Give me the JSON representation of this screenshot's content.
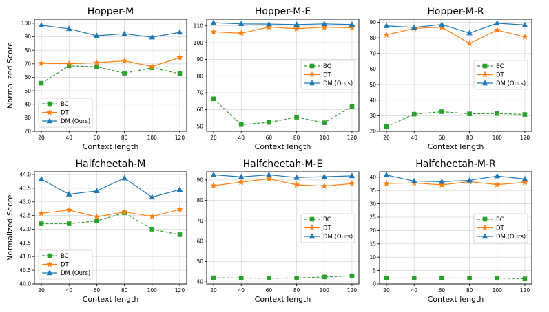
{
  "figure": {
    "row_ylabel": "Normalized Score",
    "xlabel": "Context length"
  },
  "legend": {
    "entries": [
      "BC",
      "DT",
      "DM (Ours)"
    ]
  },
  "colors": {
    "BC": "#2ca02c",
    "DT": "#ff7f0e",
    "DM": "#1f77b4",
    "grid": "#d9d9d9",
    "axis": "#000000"
  },
  "chart_data": [
    {
      "type": "line",
      "title": "Hopper-M",
      "xlabel": "Context length",
      "ylabel": "Normalized Score",
      "x": [
        20,
        40,
        60,
        80,
        100,
        120
      ],
      "xlim": [
        15,
        125
      ],
      "ylim": [
        20,
        103
      ],
      "yticks": [
        20,
        30,
        40,
        50,
        60,
        70,
        80,
        90,
        100
      ],
      "grid": true,
      "legend_position": "lower-left",
      "series": [
        {
          "name": "BC",
          "marker": "square",
          "linestyle": "dashed",
          "values": [
            55.6,
            68.5,
            67.8,
            63.0,
            67.0,
            62.6
          ]
        },
        {
          "name": "DT",
          "marker": "star",
          "linestyle": "solid",
          "values": [
            70.4,
            70.1,
            70.8,
            72.2,
            68.0,
            74.6
          ]
        },
        {
          "name": "DM (Ours)",
          "marker": "triangle",
          "linestyle": "solid",
          "values": [
            98.5,
            95.9,
            90.8,
            92.2,
            89.7,
            93.3
          ]
        }
      ]
    },
    {
      "type": "line",
      "title": "Hopper-M-E",
      "xlabel": "Context length",
      "ylabel": "",
      "x": [
        20,
        40,
        60,
        80,
        100,
        120
      ],
      "xlim": [
        15,
        125
      ],
      "ylim": [
        47,
        114
      ],
      "yticks": [
        50,
        60,
        70,
        80,
        90,
        100,
        110
      ],
      "grid": true,
      "legend_position": "center-right",
      "series": [
        {
          "name": "BC",
          "marker": "square",
          "linestyle": "dashed",
          "values": [
            66.4,
            51.0,
            52.3,
            55.4,
            52.1,
            61.8
          ]
        },
        {
          "name": "DT",
          "marker": "star",
          "linestyle": "solid",
          "values": [
            106.5,
            105.6,
            109.3,
            108.3,
            109.2,
            108.9
          ]
        },
        {
          "name": "DM (Ours)",
          "marker": "triangle",
          "linestyle": "solid",
          "values": [
            111.9,
            111.2,
            111.1,
            110.8,
            111.2,
            110.8
          ]
        }
      ]
    },
    {
      "type": "line",
      "title": "Hopper-M-R",
      "xlabel": "Context length",
      "ylabel": "",
      "x": [
        20,
        40,
        60,
        80,
        100,
        120
      ],
      "xlim": [
        15,
        125
      ],
      "ylim": [
        20,
        92
      ],
      "yticks": [
        20,
        30,
        40,
        50,
        60,
        70,
        80,
        90
      ],
      "grid": true,
      "legend_position": "center-right",
      "series": [
        {
          "name": "BC",
          "marker": "square",
          "linestyle": "dashed",
          "values": [
            23.0,
            31.0,
            32.6,
            31.2,
            31.4,
            30.8
          ]
        },
        {
          "name": "DT",
          "marker": "star",
          "linestyle": "solid",
          "values": [
            82.0,
            86.0,
            86.9,
            76.4,
            85.0,
            80.6
          ]
        },
        {
          "name": "DM (Ours)",
          "marker": "triangle",
          "linestyle": "solid",
          "values": [
            87.7,
            86.7,
            88.6,
            83.1,
            89.4,
            88.3
          ]
        }
      ]
    },
    {
      "type": "line",
      "title": "Halfcheetah-M",
      "xlabel": "Context length",
      "ylabel": "Normalized Score",
      "x": [
        20,
        40,
        60,
        80,
        100,
        120
      ],
      "xlim": [
        15,
        125
      ],
      "ylim": [
        40.0,
        44.1
      ],
      "yticks": [
        40.0,
        40.5,
        41.0,
        41.5,
        42.0,
        42.5,
        43.0,
        43.5,
        44.0
      ],
      "grid": true,
      "legend_position": "lower-left",
      "series": [
        {
          "name": "BC",
          "marker": "square",
          "linestyle": "dashed",
          "values": [
            42.2,
            42.2,
            42.3,
            42.6,
            42.0,
            41.8
          ]
        },
        {
          "name": "DT",
          "marker": "star",
          "linestyle": "solid",
          "values": [
            42.58,
            42.7,
            42.45,
            42.63,
            42.47,
            42.72
          ]
        },
        {
          "name": "DM (Ours)",
          "marker": "triangle",
          "linestyle": "solid",
          "values": [
            43.83,
            43.28,
            43.4,
            43.87,
            43.17,
            43.45
          ]
        }
      ]
    },
    {
      "type": "line",
      "title": "Halfcheetah-M-E",
      "xlabel": "Context length",
      "ylabel": "",
      "x": [
        20,
        40,
        60,
        80,
        100,
        120
      ],
      "xlim": [
        15,
        125
      ],
      "ylim": [
        39,
        94
      ],
      "yticks": [
        40,
        50,
        60,
        70,
        80,
        90
      ],
      "grid": true,
      "legend_position": "center-right",
      "series": [
        {
          "name": "BC",
          "marker": "square",
          "linestyle": "dashed",
          "values": [
            42.0,
            41.9,
            41.8,
            41.9,
            42.4,
            43.0
          ]
        },
        {
          "name": "DT",
          "marker": "star",
          "linestyle": "solid",
          "values": [
            87.2,
            88.9,
            90.6,
            87.6,
            87.0,
            88.2
          ]
        },
        {
          "name": "DM (Ours)",
          "marker": "triangle",
          "linestyle": "solid",
          "values": [
            92.5,
            91.5,
            92.5,
            91.2,
            91.6,
            92.0
          ]
        }
      ]
    },
    {
      "type": "line",
      "title": "Halfcheetah-M-R",
      "xlabel": "Context length",
      "ylabel": "",
      "x": [
        20,
        40,
        60,
        80,
        100,
        120
      ],
      "xlim": [
        15,
        125
      ],
      "ylim": [
        0,
        42
      ],
      "yticks": [
        0,
        5,
        10,
        15,
        20,
        25,
        30,
        35,
        40
      ],
      "grid": true,
      "legend_position": "center-right",
      "series": [
        {
          "name": "BC",
          "marker": "square",
          "linestyle": "dashed",
          "values": [
            2.2,
            2.2,
            2.2,
            2.2,
            2.2,
            1.9
          ]
        },
        {
          "name": "DT",
          "marker": "star",
          "linestyle": "solid",
          "values": [
            37.6,
            37.8,
            37.1,
            38.3,
            37.2,
            38.0
          ]
        },
        {
          "name": "DM (Ours)",
          "marker": "triangle",
          "linestyle": "solid",
          "values": [
            40.8,
            38.5,
            38.3,
            38.8,
            40.4,
            39.3
          ]
        }
      ]
    }
  ]
}
